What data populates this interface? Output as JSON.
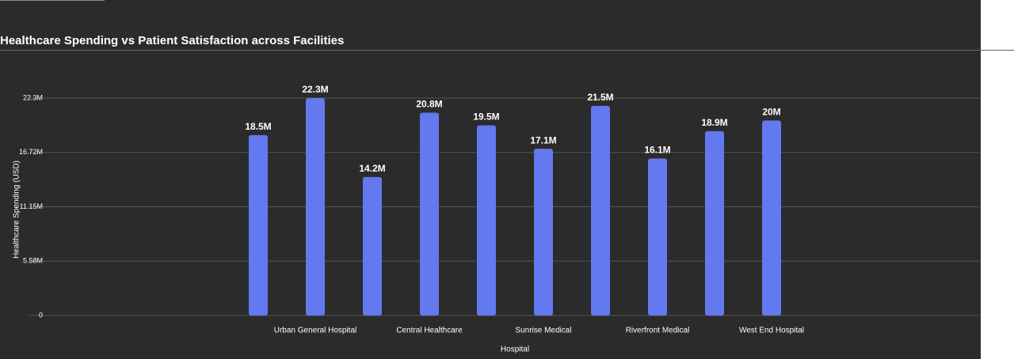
{
  "chart_data": {
    "type": "bar",
    "title": "Healthcare Spending vs Patient Satisfaction across Facilities",
    "x_label": "Hospital",
    "y_label": "Healthcare Spending (USD)",
    "categories": [
      null,
      "Urban General Hospital",
      null,
      "Central Healthcare",
      null,
      "Sunrise Medical",
      null,
      "Riverfront Medical",
      null,
      "West End Hospital"
    ],
    "values": [
      18500000,
      22300000,
      14200000,
      20800000,
      19500000,
      17100000,
      21500000,
      16100000,
      18900000,
      20000000
    ],
    "value_labels": [
      "18.5M",
      "22.3M",
      "14.2M",
      "20.8M",
      "19.5M",
      "17.1M",
      "21.5M",
      "16.1M",
      "18.9M",
      "20M"
    ],
    "color": "#6379f0",
    "ylim": [
      0,
      22300000
    ],
    "yticks": [
      0,
      {
        "value": 5580000,
        "label": "5.58M"
      },
      {
        "value": 11150000,
        "label": "11.15M"
      },
      {
        "value": 16720000,
        "label": "16.72M"
      },
      {
        "value": 22300000,
        "label": "22.3M"
      }
    ],
    "grid": true
  }
}
